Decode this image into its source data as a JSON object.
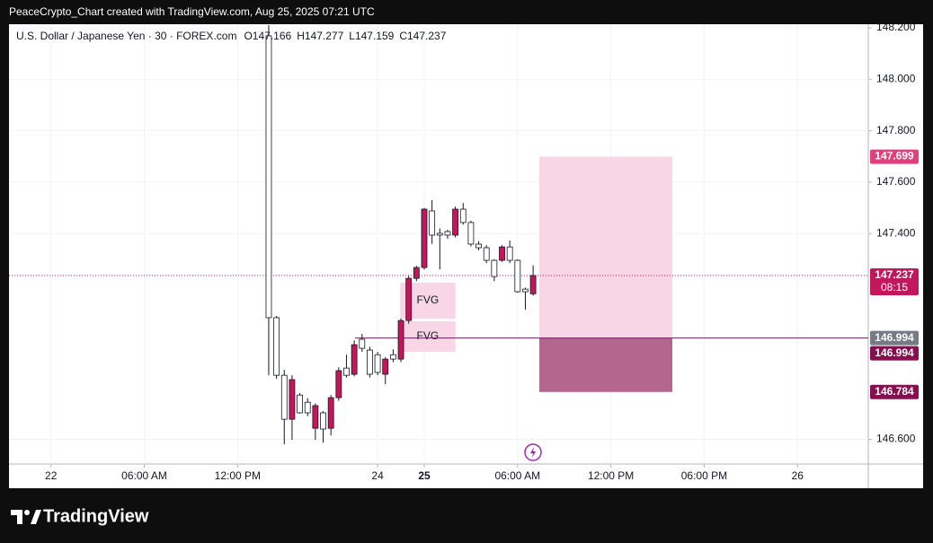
{
  "header": "PeaceCrypto_Chart created with TradingView.com, Aug 25, 2025 07:21 UTC",
  "chart_data": {
    "type": "candlestick",
    "symbol": "U.S. Dollar / Japanese Yen · 30 · FOREX.com",
    "ohlc_prefixes": [
      "O",
      "H",
      "L",
      "C"
    ],
    "x": [
      0,
      1,
      2,
      3,
      4,
      5,
      6,
      7,
      8,
      9,
      10,
      11,
      12,
      13,
      14,
      15,
      16,
      17,
      18,
      19,
      20,
      21,
      22,
      23,
      24,
      25,
      26,
      27,
      28,
      29,
      30,
      31,
      32,
      33,
      34
    ],
    "series": [
      {
        "up_color": "#c2185b",
        "down_color": "#ffffff",
        "open": [
          148.169,
          147.073,
          146.849,
          146.678,
          146.772,
          146.744,
          146.643,
          146.703,
          146.643,
          146.762,
          146.877,
          146.853,
          146.989,
          146.947,
          146.929,
          146.853,
          146.929,
          146.912,
          147.062,
          147.226,
          147.268,
          147.488,
          147.401,
          147.408,
          147.394,
          147.495,
          147.443,
          147.359,
          147.345,
          147.296,
          147.296,
          147.348,
          147.296,
          147.184,
          147.166
        ],
        "high": [
          148.21,
          147.08,
          146.87,
          146.849,
          146.78,
          146.76,
          146.74,
          146.71,
          146.772,
          146.88,
          146.929,
          146.985,
          147.01,
          146.96,
          146.94,
          146.92,
          146.95,
          147.07,
          147.235,
          147.275,
          147.5,
          147.53,
          147.42,
          147.415,
          147.505,
          147.519,
          147.45,
          147.37,
          147.355,
          147.3,
          147.355,
          147.373,
          147.3,
          147.19,
          147.277
        ],
        "low": [
          146.849,
          146.835,
          146.58,
          146.598,
          146.7,
          146.69,
          146.598,
          146.587,
          146.615,
          146.75,
          146.84,
          146.845,
          146.94,
          146.84,
          146.85,
          146.814,
          146.9,
          146.9,
          147.05,
          147.215,
          147.26,
          147.36,
          147.261,
          147.38,
          147.385,
          147.435,
          147.35,
          147.335,
          147.285,
          147.215,
          147.29,
          147.285,
          147.17,
          147.104,
          147.159
        ],
        "close": [
          147.073,
          146.849,
          146.678,
          146.832,
          146.703,
          146.703,
          146.731,
          146.64,
          146.762,
          146.867,
          146.849,
          146.968,
          146.954,
          146.853,
          146.86,
          146.912,
          146.912,
          147.062,
          147.226,
          147.268,
          147.495,
          147.394,
          147.394,
          147.394,
          147.495,
          147.443,
          147.359,
          147.345,
          147.296,
          147.233,
          147.348,
          147.296,
          147.174,
          147.174,
          147.237
        ]
      }
    ],
    "xlim": [
      -33.4,
      77.1
    ],
    "xticks": [
      {
        "value": -28,
        "label": "22"
      },
      {
        "value": -16,
        "label": "06:00 AM"
      },
      {
        "value": -4,
        "label": "12:00 PM"
      },
      {
        "value": 14,
        "label": "24"
      },
      {
        "value": 20,
        "label": "25"
      },
      {
        "value": 32,
        "label": "06:00 AM"
      },
      {
        "value": 44,
        "label": "12:00 PM"
      },
      {
        "value": 56,
        "label": "06:00 PM"
      },
      {
        "value": 68,
        "label": "26"
      }
    ],
    "xtick_bold": 4,
    "ylim": [
      146.504,
      148.214
    ],
    "yticks": [
      {
        "value": 146.6,
        "label": "146.600"
      },
      {
        "value": 147.4,
        "label": "147.400"
      },
      {
        "value": 147.6,
        "label": "147.600"
      },
      {
        "value": 147.8,
        "label": "147.800"
      },
      {
        "value": 148.0,
        "label": "148.000"
      },
      {
        "value": 148.2,
        "label": "148.200"
      }
    ],
    "grid": true,
    "countdown": "08:15",
    "hline": {
      "price": 146.994,
      "start": 11.1
    },
    "fvg": [
      {
        "label": "FVG",
        "x": [
          16.9,
          24.0
        ],
        "y": [
          147.069,
          147.209
        ]
      },
      {
        "label": "FVG",
        "x": [
          16.9,
          24.0
        ],
        "y": [
          146.94,
          147.059
        ]
      }
    ],
    "position": {
      "x": [
        34.8,
        51.9
      ],
      "target": 147.699,
      "entry": 146.994,
      "stop": 146.784
    }
  },
  "footer": {
    "brand": "TradingView"
  }
}
